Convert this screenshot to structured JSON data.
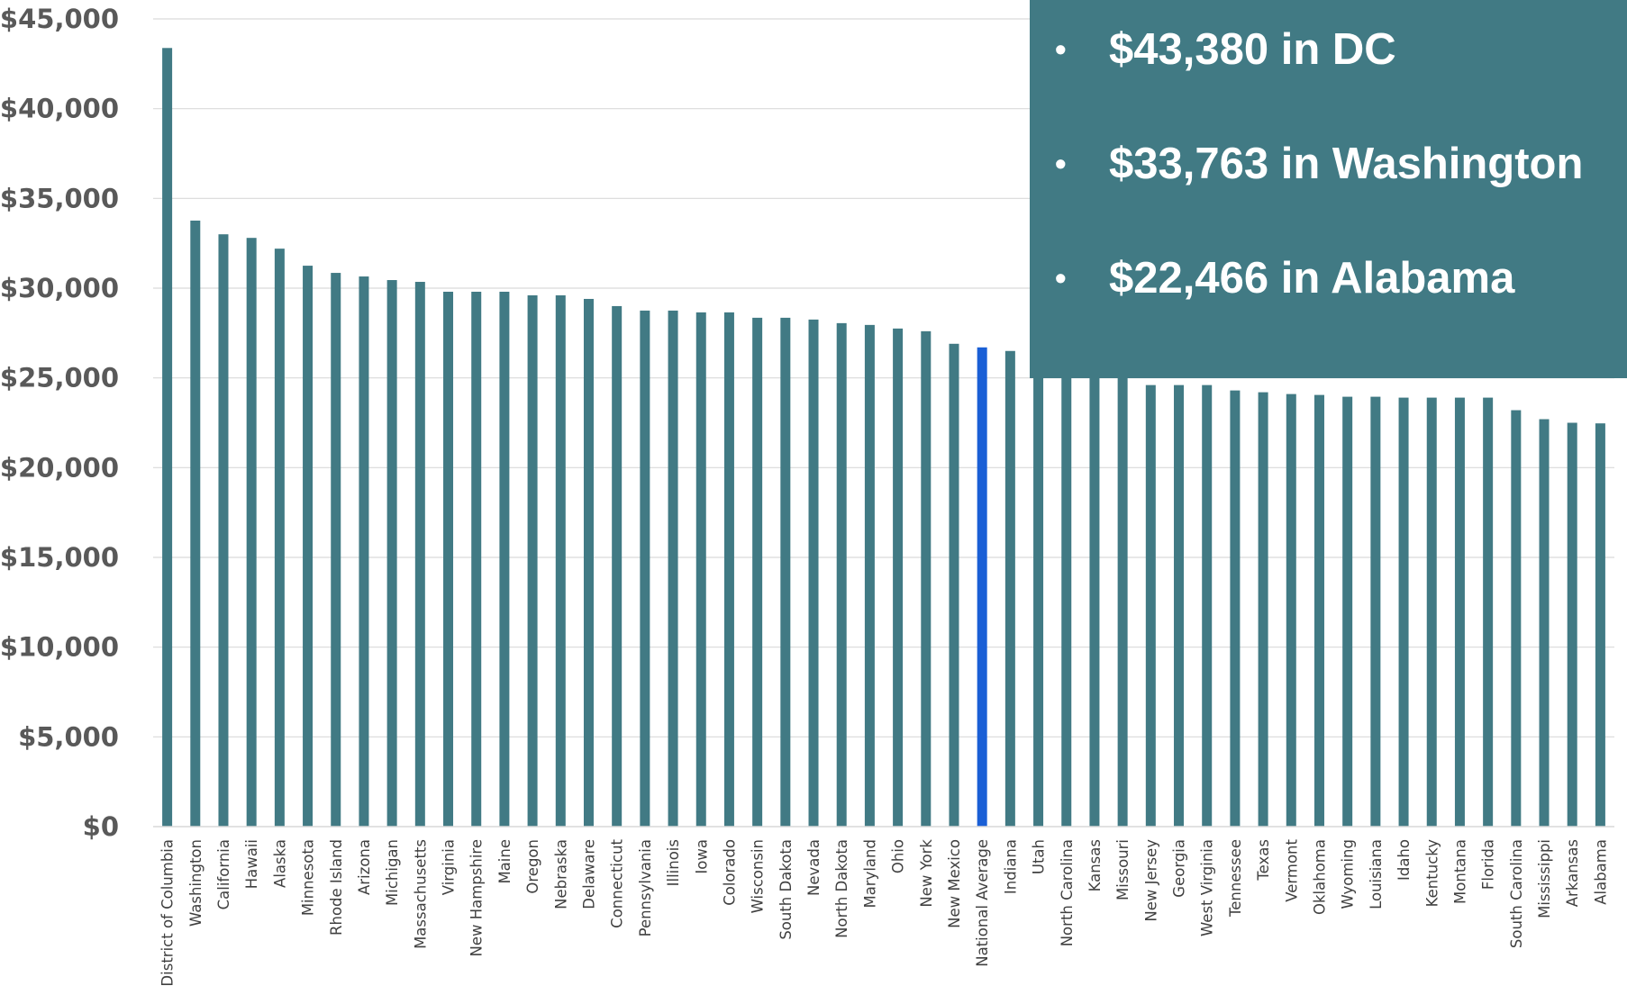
{
  "chart_data": {
    "type": "bar",
    "title": "",
    "xlabel": "",
    "ylabel": "",
    "ylim": [
      0,
      45000
    ],
    "yticks": [
      "$0",
      "$5,000",
      "$10,000",
      "$15,000",
      "$20,000",
      "$25,000",
      "$30,000",
      "$35,000",
      "$40,000",
      "$45,000"
    ],
    "grid": true,
    "bar_color": "#417a84",
    "highlight_color": "#1a5fd6",
    "highlight_category": "National Average",
    "categories": [
      "District of Columbia",
      "Washington",
      "California",
      "Hawaii",
      "Alaska",
      "Minnesota",
      "Rhode Island",
      "Arizona",
      "Michigan",
      "Massachusetts",
      "Virginia",
      "New Hampshire",
      "Maine",
      "Oregon",
      "Nebraska",
      "Delaware",
      "Connecticut",
      "Pennsylvania",
      "Illinois",
      "Iowa",
      "Colorado",
      "Wisconsin",
      "South Dakota",
      "Nevada",
      "North Dakota",
      "Maryland",
      "Ohio",
      "New York",
      "New Mexico",
      "National Average",
      "Indiana",
      "Utah",
      "North Carolina",
      "Kansas",
      "Missouri",
      "New Jersey",
      "Georgia",
      "West Virginia",
      "Tennessee",
      "Texas",
      "Vermont",
      "Oklahoma",
      "Wyoming",
      "Louisiana",
      "Idaho",
      "Kentucky",
      "Montana",
      "Florida",
      "South Carolina",
      "Mississippi",
      "Arkansas",
      "Alabama"
    ],
    "values": [
      43380,
      33763,
      33000,
      32800,
      32200,
      31250,
      30850,
      30650,
      30450,
      30350,
      29800,
      29800,
      29800,
      29600,
      29600,
      29400,
      29000,
      28750,
      28750,
      28650,
      28650,
      28350,
      28350,
      28250,
      28050,
      27950,
      27750,
      27600,
      26900,
      26700,
      26500,
      26300,
      26100,
      25800,
      25300,
      24600,
      24600,
      24600,
      24300,
      24200,
      24100,
      24050,
      23950,
      23950,
      23900,
      23900,
      23900,
      23900,
      23200,
      22700,
      22500,
      22466
    ],
    "annotations": [
      "$43,380 in DC",
      "$33,763 in Washington",
      "$22,466 in Alabama"
    ]
  },
  "callout": {
    "bullet": "•",
    "background": "#417a84",
    "text_color": "#ffffff"
  }
}
